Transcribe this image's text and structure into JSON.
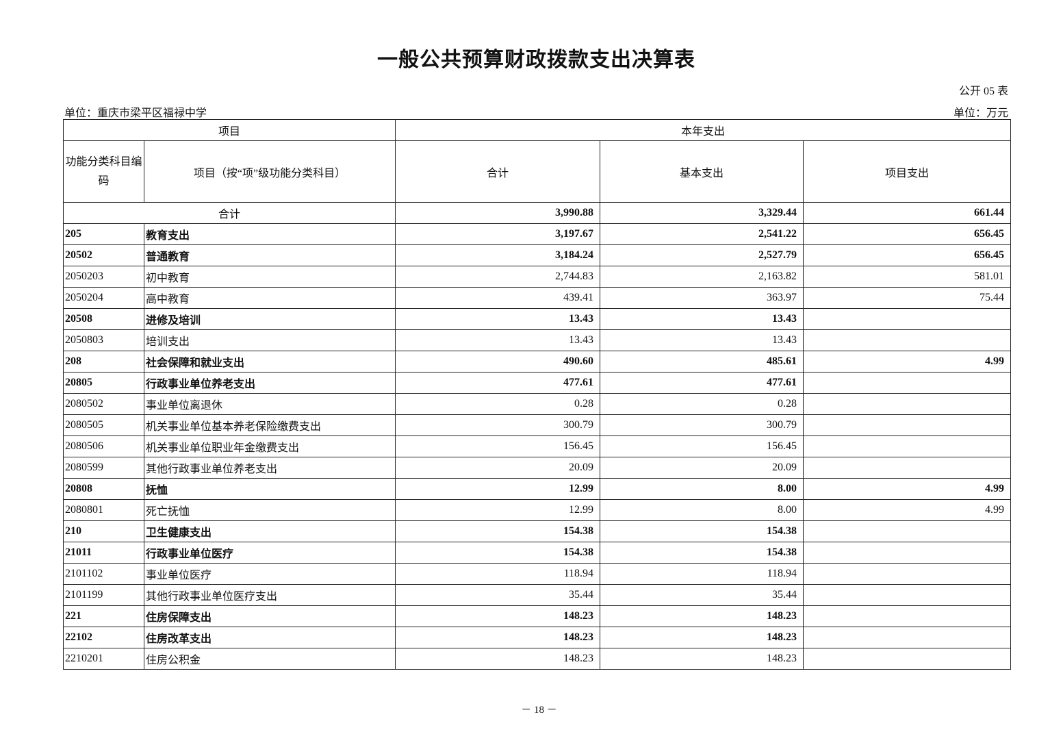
{
  "title": "一般公共预算财政拨款支出决算表",
  "table_no": "公开 05 表",
  "unit_left": "单位：重庆市梁平区福禄中学",
  "unit_right": "单位：万元",
  "headers": {
    "project": "项目",
    "current_year": "本年支出",
    "code": "功能分类科目编码",
    "item": "项目（按“项”级功能分类科目）",
    "total": "合计",
    "basic": "基本支出",
    "project_exp": "项目支出"
  },
  "total_row": {
    "label": "合计",
    "total": "3,990.88",
    "basic": "3,329.44",
    "project": "661.44"
  },
  "rows": [
    {
      "code": "205",
      "name": "教育支出",
      "total": "3,197.67",
      "basic": "2,541.22",
      "project": "656.45",
      "bold": true
    },
    {
      "code": "20502",
      "name": "普通教育",
      "total": "3,184.24",
      "basic": "2,527.79",
      "project": "656.45",
      "bold": true
    },
    {
      "code": "2050203",
      "name": "初中教育",
      "total": "2,744.83",
      "basic": "2,163.82",
      "project": "581.01",
      "bold": false
    },
    {
      "code": "2050204",
      "name": "高中教育",
      "total": "439.41",
      "basic": "363.97",
      "project": "75.44",
      "bold": false
    },
    {
      "code": "20508",
      "name": "进修及培训",
      "total": "13.43",
      "basic": "13.43",
      "project": "",
      "bold": true
    },
    {
      "code": "2050803",
      "name": "培训支出",
      "total": "13.43",
      "basic": "13.43",
      "project": "",
      "bold": false
    },
    {
      "code": "208",
      "name": "社会保障和就业支出",
      "total": "490.60",
      "basic": "485.61",
      "project": "4.99",
      "bold": true
    },
    {
      "code": "20805",
      "name": "行政事业单位养老支出",
      "total": "477.61",
      "basic": "477.61",
      "project": "",
      "bold": true
    },
    {
      "code": "2080502",
      "name": "事业单位离退休",
      "total": "0.28",
      "basic": "0.28",
      "project": "",
      "bold": false
    },
    {
      "code": "2080505",
      "name": "机关事业单位基本养老保险缴费支出",
      "total": "300.79",
      "basic": "300.79",
      "project": "",
      "bold": false
    },
    {
      "code": "2080506",
      "name": "机关事业单位职业年金缴费支出",
      "total": "156.45",
      "basic": "156.45",
      "project": "",
      "bold": false
    },
    {
      "code": "2080599",
      "name": "其他行政事业单位养老支出",
      "total": "20.09",
      "basic": "20.09",
      "project": "",
      "bold": false
    },
    {
      "code": "20808",
      "name": "抚恤",
      "total": "12.99",
      "basic": "8.00",
      "project": "4.99",
      "bold": true
    },
    {
      "code": "2080801",
      "name": "死亡抚恤",
      "total": "12.99",
      "basic": "8.00",
      "project": "4.99",
      "bold": false
    },
    {
      "code": "210",
      "name": "卫生健康支出",
      "total": "154.38",
      "basic": "154.38",
      "project": "",
      "bold": true
    },
    {
      "code": "21011",
      "name": "行政事业单位医疗",
      "total": "154.38",
      "basic": "154.38",
      "project": "",
      "bold": true
    },
    {
      "code": "2101102",
      "name": "事业单位医疗",
      "total": "118.94",
      "basic": "118.94",
      "project": "",
      "bold": false
    },
    {
      "code": "2101199",
      "name": "其他行政事业单位医疗支出",
      "total": "35.44",
      "basic": "35.44",
      "project": "",
      "bold": false
    },
    {
      "code": "221",
      "name": "住房保障支出",
      "total": "148.23",
      "basic": "148.23",
      "project": "",
      "bold": true
    },
    {
      "code": "22102",
      "name": "住房改革支出",
      "total": "148.23",
      "basic": "148.23",
      "project": "",
      "bold": true
    },
    {
      "code": "2210201",
      "name": "住房公积金",
      "total": "148.23",
      "basic": "148.23",
      "project": "",
      "bold": false
    }
  ],
  "page_number": "－ 18 －"
}
